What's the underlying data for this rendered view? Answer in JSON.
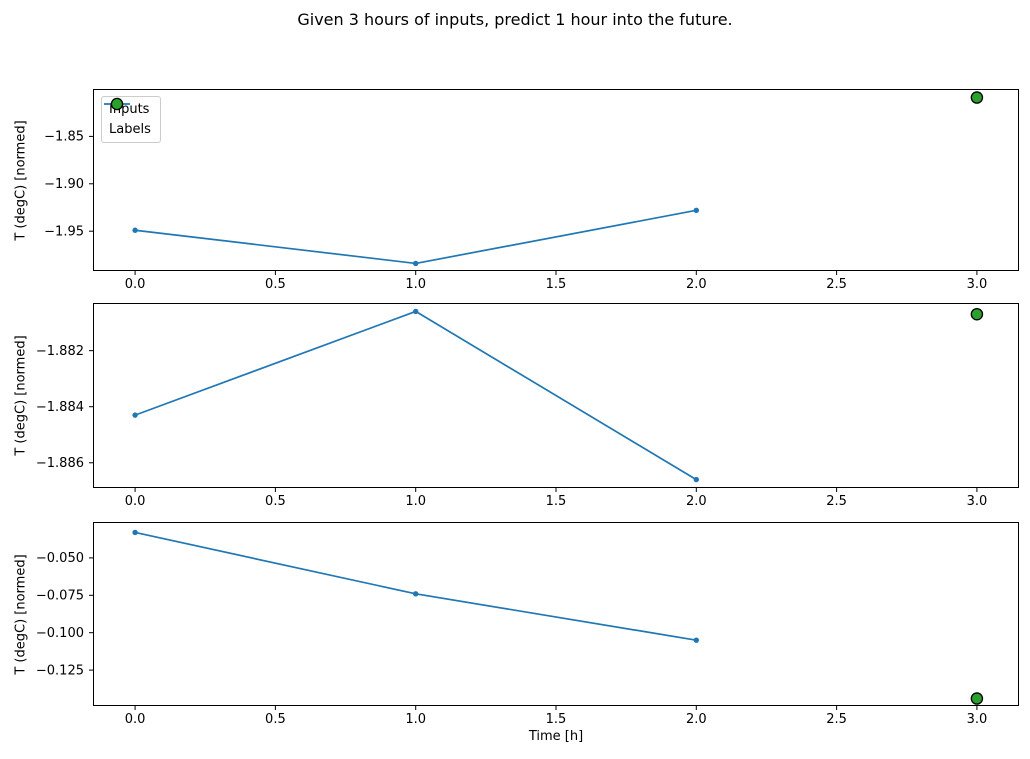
{
  "figure": {
    "title": "Given 3 hours of inputs, predict 1 hour into the future.",
    "background_color": "#ffffff",
    "text_color": "#000000",
    "axis_color": "#000000"
  },
  "legend": {
    "position": "upper-left-of-first-subplot",
    "items": [
      {
        "label": "Inputs",
        "marker": "line-with-dot",
        "color": "#1f77b4"
      },
      {
        "label": "Labels",
        "marker": "filled-circle",
        "color": "#2ca02c",
        "edge_color": "#000000"
      }
    ]
  },
  "chart_data": [
    {
      "type": "line",
      "title": "",
      "xlabel": "",
      "ylabel": "T (degC) [normed]",
      "xlim": [
        -0.15,
        3.15
      ],
      "ylim": [
        -1.992,
        -1.8
      ],
      "grid": false,
      "xticks": [
        {
          "value": 0.0,
          "label": "0.0"
        },
        {
          "value": 0.5,
          "label": "0.5"
        },
        {
          "value": 1.0,
          "label": "1.0"
        },
        {
          "value": 1.5,
          "label": "1.5"
        },
        {
          "value": 2.0,
          "label": "2.0"
        },
        {
          "value": 2.5,
          "label": "2.5"
        },
        {
          "value": 3.0,
          "label": "3.0"
        }
      ],
      "yticks": [
        {
          "value": -1.85,
          "label": "−1.85"
        },
        {
          "value": -1.9,
          "label": "−1.90"
        },
        {
          "value": -1.95,
          "label": "−1.95"
        }
      ],
      "series": [
        {
          "name": "Inputs",
          "type": "line",
          "marker": "dot",
          "color": "#1f77b4",
          "x": [
            0,
            1,
            2
          ],
          "y": [
            -1.949,
            -1.984,
            -1.928
          ]
        },
        {
          "name": "Labels",
          "type": "scatter",
          "marker": "circle",
          "color": "#2ca02c",
          "edge_color": "#000000",
          "x": [
            3
          ],
          "y": [
            -1.809
          ]
        }
      ]
    },
    {
      "type": "line",
      "title": "",
      "xlabel": "",
      "ylabel": "T (degC) [normed]",
      "xlim": [
        -0.15,
        3.15
      ],
      "ylim": [
        -1.8869,
        -1.8803
      ],
      "grid": false,
      "xticks": [
        {
          "value": 0.0,
          "label": "0.0"
        },
        {
          "value": 0.5,
          "label": "0.5"
        },
        {
          "value": 1.0,
          "label": "1.0"
        },
        {
          "value": 1.5,
          "label": "1.5"
        },
        {
          "value": 2.0,
          "label": "2.0"
        },
        {
          "value": 2.5,
          "label": "2.5"
        },
        {
          "value": 3.0,
          "label": "3.0"
        }
      ],
      "yticks": [
        {
          "value": -1.882,
          "label": "−1.882"
        },
        {
          "value": -1.884,
          "label": "−1.884"
        },
        {
          "value": -1.886,
          "label": "−1.886"
        }
      ],
      "series": [
        {
          "name": "Inputs",
          "type": "line",
          "marker": "dot",
          "color": "#1f77b4",
          "x": [
            0,
            1,
            2
          ],
          "y": [
            -1.8843,
            -1.8806,
            -1.8866
          ]
        },
        {
          "name": "Labels",
          "type": "scatter",
          "marker": "circle",
          "color": "#2ca02c",
          "edge_color": "#000000",
          "x": [
            3
          ],
          "y": [
            -1.8807
          ]
        }
      ]
    },
    {
      "type": "line",
      "title": "",
      "xlabel": "Time [h]",
      "ylabel": "T (degC) [normed]",
      "xlim": [
        -0.15,
        3.15
      ],
      "ylim": [
        -0.149,
        -0.026
      ],
      "grid": false,
      "xticks": [
        {
          "value": 0.0,
          "label": "0.0"
        },
        {
          "value": 0.5,
          "label": "0.5"
        },
        {
          "value": 1.0,
          "label": "1.0"
        },
        {
          "value": 1.5,
          "label": "1.5"
        },
        {
          "value": 2.0,
          "label": "2.0"
        },
        {
          "value": 2.5,
          "label": "2.5"
        },
        {
          "value": 3.0,
          "label": "3.0"
        }
      ],
      "yticks": [
        {
          "value": -0.05,
          "label": "−0.050"
        },
        {
          "value": -0.075,
          "label": "−0.075"
        },
        {
          "value": -0.1,
          "label": "−0.100"
        },
        {
          "value": -0.125,
          "label": "−0.125"
        }
      ],
      "series": [
        {
          "name": "Inputs",
          "type": "line",
          "marker": "dot",
          "color": "#1f77b4",
          "x": [
            0,
            1,
            2
          ],
          "y": [
            -0.033,
            -0.074,
            -0.105
          ]
        },
        {
          "name": "Labels",
          "type": "scatter",
          "marker": "circle",
          "color": "#2ca02c",
          "edge_color": "#000000",
          "x": [
            3
          ],
          "y": [
            -0.144
          ]
        }
      ]
    }
  ]
}
